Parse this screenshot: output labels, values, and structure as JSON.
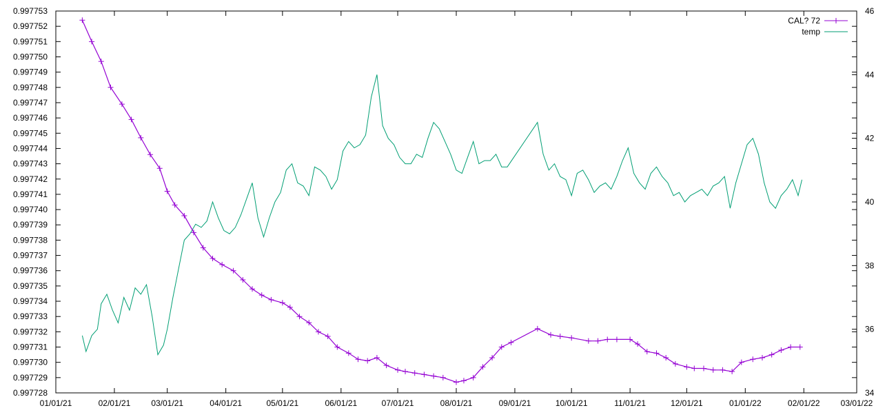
{
  "chart_data": {
    "type": "line",
    "title": "",
    "xlabel": "",
    "ylabel": "",
    "y2label": "",
    "grid": false,
    "legend_position": "top-right",
    "x_ticks": [
      "01/01/21",
      "02/01/21",
      "03/01/21",
      "04/01/21",
      "05/01/21",
      "06/01/21",
      "07/01/21",
      "08/01/21",
      "09/01/21",
      "10/01/21",
      "11/01/21",
      "12/01/21",
      "01/01/22",
      "02/01/22",
      "03/01/22"
    ],
    "x_range": [
      "2021-01-01",
      "2022-03-01"
    ],
    "y_ticks": [
      "0.997728",
      "0.997729",
      "0.997730",
      "0.997731",
      "0.997732",
      "0.997733",
      "0.997734",
      "0.997735",
      "0.997736",
      "0.997737",
      "0.997738",
      "0.997739",
      "0.997740",
      "0.997741",
      "0.997742",
      "0.997743",
      "0.997744",
      "0.997745",
      "0.997746",
      "0.997747",
      "0.997748",
      "0.997749",
      "0.997750",
      "0.997751",
      "0.997752",
      "0.997753"
    ],
    "ylim": [
      0.997728,
      0.997753
    ],
    "y2_ticks": [
      "34",
      "36",
      "38",
      "40",
      "42",
      "44",
      "46"
    ],
    "y2lim": [
      34,
      46
    ],
    "series": [
      {
        "name": "CAL? 72",
        "axis": "y",
        "color": "#9400d3",
        "marker": "plus",
        "points": [
          [
            "2021-01-15",
            0.9977524
          ],
          [
            "2021-01-20",
            0.997751
          ],
          [
            "2021-01-25",
            0.9977497
          ],
          [
            "2021-01-30",
            0.997748
          ],
          [
            "2021-02-05",
            0.9977469
          ],
          [
            "2021-02-10",
            0.9977459
          ],
          [
            "2021-02-15",
            0.9977447
          ],
          [
            "2021-02-20",
            0.9977436
          ],
          [
            "2021-02-25",
            0.9977427
          ],
          [
            "2021-03-01",
            0.9977412
          ],
          [
            "2021-03-05",
            0.9977403
          ],
          [
            "2021-03-10",
            0.9977396
          ],
          [
            "2021-03-15",
            0.9977385
          ],
          [
            "2021-03-20",
            0.9977375
          ],
          [
            "2021-03-25",
            0.9977368
          ],
          [
            "2021-03-30",
            0.9977364
          ],
          [
            "2021-04-05",
            0.997736
          ],
          [
            "2021-04-10",
            0.9977354
          ],
          [
            "2021-04-15",
            0.9977348
          ],
          [
            "2021-04-20",
            0.9977344
          ],
          [
            "2021-04-25",
            0.9977341
          ],
          [
            "2021-05-01",
            0.9977339
          ],
          [
            "2021-05-05",
            0.9977336
          ],
          [
            "2021-05-10",
            0.997733
          ],
          [
            "2021-05-15",
            0.9977326
          ],
          [
            "2021-05-20",
            0.997732
          ],
          [
            "2021-05-25",
            0.9977317
          ],
          [
            "2021-05-30",
            0.997731
          ],
          [
            "2021-06-05",
            0.9977306
          ],
          [
            "2021-06-10",
            0.9977302
          ],
          [
            "2021-06-15",
            0.9977301
          ],
          [
            "2021-06-20",
            0.9977303
          ],
          [
            "2021-06-25",
            0.9977298
          ],
          [
            "2021-07-01",
            0.9977295
          ],
          [
            "2021-07-05",
            0.9977294
          ],
          [
            "2021-07-10",
            0.9977293
          ],
          [
            "2021-07-15",
            0.9977292
          ],
          [
            "2021-07-20",
            0.9977291
          ],
          [
            "2021-07-25",
            0.997729
          ],
          [
            "2021-08-01",
            0.9977287
          ],
          [
            "2021-08-05",
            0.9977288
          ],
          [
            "2021-08-10",
            0.997729
          ],
          [
            "2021-08-15",
            0.9977297
          ],
          [
            "2021-08-20",
            0.9977303
          ],
          [
            "2021-08-25",
            0.997731
          ],
          [
            "2021-08-30",
            0.9977313
          ],
          [
            "2021-09-13",
            0.9977322
          ],
          [
            "2021-09-20",
            0.9977318
          ],
          [
            "2021-09-25",
            0.9977317
          ],
          [
            "2021-10-01",
            0.9977316
          ],
          [
            "2021-10-10",
            0.9977314
          ],
          [
            "2021-10-15",
            0.9977314
          ],
          [
            "2021-10-20",
            0.9977315
          ],
          [
            "2021-10-25",
            0.9977315
          ],
          [
            "2021-11-01",
            0.9977315
          ],
          [
            "2021-11-05",
            0.9977312
          ],
          [
            "2021-11-10",
            0.9977307
          ],
          [
            "2021-11-15",
            0.9977306
          ],
          [
            "2021-11-20",
            0.9977303
          ],
          [
            "2021-11-25",
            0.9977299
          ],
          [
            "2021-12-01",
            0.9977297
          ],
          [
            "2021-12-05",
            0.9977296
          ],
          [
            "2021-12-10",
            0.9977296
          ],
          [
            "2021-12-15",
            0.9977295
          ],
          [
            "2021-12-20",
            0.9977295
          ],
          [
            "2021-12-25",
            0.9977294
          ],
          [
            "2021-12-30",
            0.99773
          ],
          [
            "2022-01-05",
            0.9977302
          ],
          [
            "2022-01-10",
            0.9977303
          ],
          [
            "2022-01-15",
            0.9977305
          ],
          [
            "2022-01-20",
            0.9977308
          ],
          [
            "2022-01-25",
            0.997731
          ],
          [
            "2022-01-30",
            0.997731
          ]
        ]
      },
      {
        "name": "temp",
        "axis": "y2",
        "color": "#009e73",
        "marker": "none",
        "points": [
          [
            "2021-01-15",
            35.8
          ],
          [
            "2021-01-17",
            35.3
          ],
          [
            "2021-01-20",
            35.8
          ],
          [
            "2021-01-23",
            36.0
          ],
          [
            "2021-01-25",
            36.8
          ],
          [
            "2021-01-28",
            37.1
          ],
          [
            "2021-01-31",
            36.6
          ],
          [
            "2021-02-03",
            36.2
          ],
          [
            "2021-02-06",
            37.0
          ],
          [
            "2021-02-09",
            36.6
          ],
          [
            "2021-02-12",
            37.3
          ],
          [
            "2021-02-15",
            37.1
          ],
          [
            "2021-02-18",
            37.4
          ],
          [
            "2021-02-21",
            36.4
          ],
          [
            "2021-02-24",
            35.2
          ],
          [
            "2021-02-27",
            35.5
          ],
          [
            "2021-03-01",
            36.0
          ],
          [
            "2021-03-04",
            37.0
          ],
          [
            "2021-03-07",
            37.9
          ],
          [
            "2021-03-10",
            38.8
          ],
          [
            "2021-03-13",
            39.0
          ],
          [
            "2021-03-16",
            39.3
          ],
          [
            "2021-03-19",
            39.2
          ],
          [
            "2021-03-22",
            39.4
          ],
          [
            "2021-03-25",
            40.0
          ],
          [
            "2021-03-28",
            39.5
          ],
          [
            "2021-03-31",
            39.1
          ],
          [
            "2021-04-03",
            39.0
          ],
          [
            "2021-04-06",
            39.2
          ],
          [
            "2021-04-09",
            39.6
          ],
          [
            "2021-04-12",
            40.1
          ],
          [
            "2021-04-15",
            40.6
          ],
          [
            "2021-04-18",
            39.5
          ],
          [
            "2021-04-21",
            38.9
          ],
          [
            "2021-04-24",
            39.5
          ],
          [
            "2021-04-27",
            40.0
          ],
          [
            "2021-04-30",
            40.3
          ],
          [
            "2021-05-03",
            41.0
          ],
          [
            "2021-05-06",
            41.2
          ],
          [
            "2021-05-09",
            40.6
          ],
          [
            "2021-05-12",
            40.5
          ],
          [
            "2021-05-15",
            40.2
          ],
          [
            "2021-05-18",
            41.1
          ],
          [
            "2021-05-21",
            41.0
          ],
          [
            "2021-05-24",
            40.8
          ],
          [
            "2021-05-27",
            40.4
          ],
          [
            "2021-05-30",
            40.7
          ],
          [
            "2021-06-02",
            41.6
          ],
          [
            "2021-06-05",
            41.9
          ],
          [
            "2021-06-08",
            41.7
          ],
          [
            "2021-06-11",
            41.8
          ],
          [
            "2021-06-14",
            42.1
          ],
          [
            "2021-06-17",
            43.3
          ],
          [
            "2021-06-20",
            44.0
          ],
          [
            "2021-06-23",
            42.4
          ],
          [
            "2021-06-26",
            42.0
          ],
          [
            "2021-06-29",
            41.8
          ],
          [
            "2021-07-02",
            41.4
          ],
          [
            "2021-07-05",
            41.2
          ],
          [
            "2021-07-08",
            41.2
          ],
          [
            "2021-07-11",
            41.5
          ],
          [
            "2021-07-14",
            41.4
          ],
          [
            "2021-07-17",
            42.0
          ],
          [
            "2021-07-20",
            42.5
          ],
          [
            "2021-07-23",
            42.3
          ],
          [
            "2021-07-26",
            41.9
          ],
          [
            "2021-07-29",
            41.5
          ],
          [
            "2021-08-01",
            41.0
          ],
          [
            "2021-08-04",
            40.9
          ],
          [
            "2021-08-07",
            41.4
          ],
          [
            "2021-08-10",
            41.9
          ],
          [
            "2021-08-13",
            41.2
          ],
          [
            "2021-08-16",
            41.3
          ],
          [
            "2021-08-19",
            41.3
          ],
          [
            "2021-08-22",
            41.5
          ],
          [
            "2021-08-25",
            41.1
          ],
          [
            "2021-08-28",
            41.1
          ],
          [
            "2021-09-13",
            42.5
          ],
          [
            "2021-09-16",
            41.5
          ],
          [
            "2021-09-19",
            41.0
          ],
          [
            "2021-09-22",
            41.2
          ],
          [
            "2021-09-25",
            40.8
          ],
          [
            "2021-09-28",
            40.7
          ],
          [
            "2021-10-01",
            40.2
          ],
          [
            "2021-10-04",
            40.9
          ],
          [
            "2021-10-07",
            41.0
          ],
          [
            "2021-10-10",
            40.7
          ],
          [
            "2021-10-13",
            40.3
          ],
          [
            "2021-10-16",
            40.5
          ],
          [
            "2021-10-19",
            40.6
          ],
          [
            "2021-10-22",
            40.4
          ],
          [
            "2021-10-25",
            40.8
          ],
          [
            "2021-10-28",
            41.3
          ],
          [
            "2021-10-31",
            41.7
          ],
          [
            "2021-11-03",
            40.9
          ],
          [
            "2021-11-06",
            40.6
          ],
          [
            "2021-11-09",
            40.4
          ],
          [
            "2021-11-12",
            40.9
          ],
          [
            "2021-11-15",
            41.1
          ],
          [
            "2021-11-18",
            40.8
          ],
          [
            "2021-11-21",
            40.6
          ],
          [
            "2021-11-24",
            40.2
          ],
          [
            "2021-11-27",
            40.3
          ],
          [
            "2021-11-30",
            40.0
          ],
          [
            "2021-12-03",
            40.2
          ],
          [
            "2021-12-06",
            40.3
          ],
          [
            "2021-12-09",
            40.4
          ],
          [
            "2021-12-12",
            40.2
          ],
          [
            "2021-12-15",
            40.5
          ],
          [
            "2021-12-18",
            40.6
          ],
          [
            "2021-12-21",
            40.8
          ],
          [
            "2021-12-24",
            39.8
          ],
          [
            "2021-12-27",
            40.6
          ],
          [
            "2021-12-30",
            41.2
          ],
          [
            "2022-01-02",
            41.8
          ],
          [
            "2022-01-05",
            42.0
          ],
          [
            "2022-01-08",
            41.5
          ],
          [
            "2022-01-11",
            40.6
          ],
          [
            "2022-01-14",
            40.0
          ],
          [
            "2022-01-17",
            39.8
          ],
          [
            "2022-01-20",
            40.2
          ],
          [
            "2022-01-23",
            40.4
          ],
          [
            "2022-01-26",
            40.7
          ],
          [
            "2022-01-29",
            40.2
          ],
          [
            "2022-01-31",
            40.7
          ]
        ]
      }
    ]
  }
}
